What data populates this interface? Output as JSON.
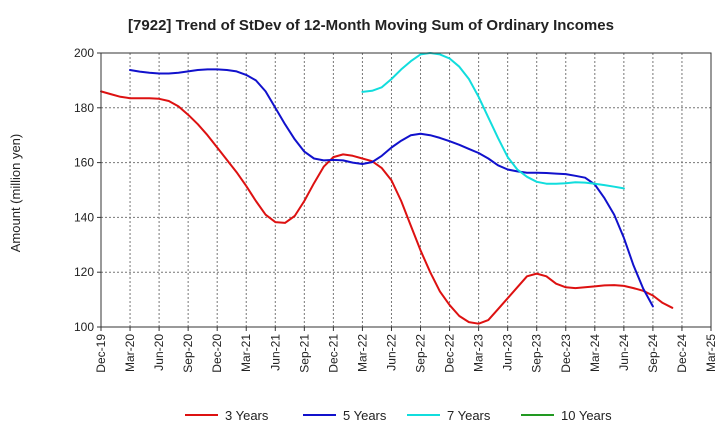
{
  "chart_data": {
    "type": "line",
    "title": "[7922]  Trend of StDev of 12-Month Moving Sum of Ordinary Incomes",
    "ylabel": "Amount (million yen)",
    "xlabel": "",
    "ylim": [
      100,
      200
    ],
    "yticks": [
      100,
      120,
      140,
      160,
      180,
      200
    ],
    "xticks": [
      "Dec-19",
      "Mar-20",
      "Jun-20",
      "Sep-20",
      "Dec-20",
      "Mar-21",
      "Jun-21",
      "Sep-21",
      "Dec-21",
      "Mar-22",
      "Jun-22",
      "Sep-22",
      "Dec-22",
      "Mar-23",
      "Jun-23",
      "Sep-23",
      "Dec-23",
      "Mar-24",
      "Jun-24",
      "Sep-24",
      "Dec-24",
      "Mar-25"
    ],
    "grid": true,
    "legend_position": "bottom",
    "series": [
      {
        "name": "3 Years",
        "color": "#dd1111",
        "start_month": "Dec-19",
        "values": [
          186,
          185,
          184,
          183.5,
          183.5,
          183.5,
          183.3,
          182.5,
          180.5,
          177.5,
          174,
          170,
          165.5,
          161,
          156.5,
          151.5,
          146,
          141,
          138.3,
          138,
          140.5,
          146,
          152.5,
          158.5,
          162,
          163,
          162.5,
          161.5,
          160.5,
          158,
          153.5,
          146,
          137,
          128,
          120,
          113,
          108,
          104,
          101.8,
          101.2,
          102.5,
          106.5,
          110.5,
          114.5,
          118.5,
          119.5,
          118.5,
          115.8,
          114.5,
          114.2,
          114.5,
          114.8,
          115.2,
          115.3,
          115,
          114.2,
          113.2,
          111.5,
          108.8,
          107
        ]
      },
      {
        "name": "5 Years",
        "color": "#1111cc",
        "start_month": "Mar-20",
        "values": [
          193.8,
          193.2,
          192.8,
          192.5,
          192.5,
          192.8,
          193.3,
          193.8,
          194,
          194,
          193.8,
          193.3,
          192,
          190,
          186,
          180,
          174,
          168.5,
          164,
          161.5,
          160.8,
          161,
          160.8,
          160,
          159.5,
          160.2,
          162.5,
          165.5,
          168,
          170,
          170.5,
          170,
          169,
          167.8,
          166.5,
          165,
          163.5,
          161.5,
          159,
          157.5,
          156.8,
          156.3,
          156.3,
          156.2,
          156,
          155.8,
          155.2,
          154.5,
          152,
          147,
          141,
          132.5,
          122.5,
          114,
          107.5
        ]
      },
      {
        "name": "7 Years",
        "color": "#11dddd",
        "start_month": "Mar-22",
        "values": [
          185.8,
          186.2,
          187.5,
          190.5,
          194,
          197,
          199.5,
          200,
          199.5,
          198,
          195,
          190.5,
          184,
          176.5,
          169,
          162,
          157.5,
          154.8,
          153,
          152.3,
          152.3,
          152.5,
          152.8,
          152.7,
          152.3,
          151.8,
          151.2,
          150.6
        ]
      },
      {
        "name": "10 Years",
        "color": "#229922",
        "start_month": "Mar-22",
        "values": []
      }
    ]
  }
}
